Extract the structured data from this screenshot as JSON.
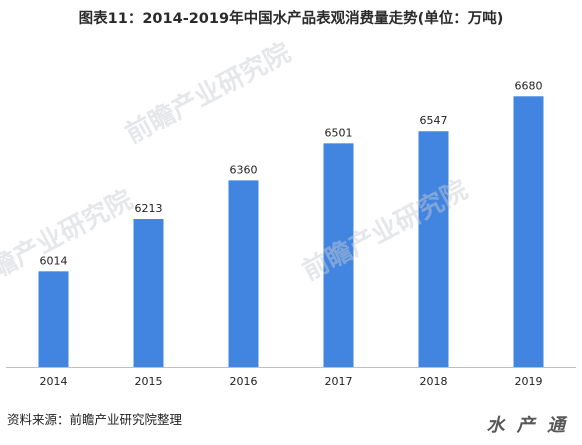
{
  "chart_data": {
    "type": "bar",
    "title": "图表11：2014-2019年中国水产品表观消费量走势(单位：万吨)",
    "categories": [
      "2014",
      "2015",
      "2016",
      "2017",
      "2018",
      "2019"
    ],
    "values": [
      6014,
      6213,
      6360,
      6501,
      6547,
      6680
    ],
    "xlabel": "",
    "ylabel": "",
    "ylim": [
      5650,
      6780
    ],
    "grid": false,
    "legend": "none",
    "bar_color": "#4285e0",
    "axis_color": "#bfbfbf"
  },
  "source": "资料来源：前瞻产业研究院整理",
  "watermarks": [
    "前瞻产业研究院",
    "前瞻产业研究院",
    "前瞻产业研究院"
  ],
  "corner_watermark": "水 产 通"
}
